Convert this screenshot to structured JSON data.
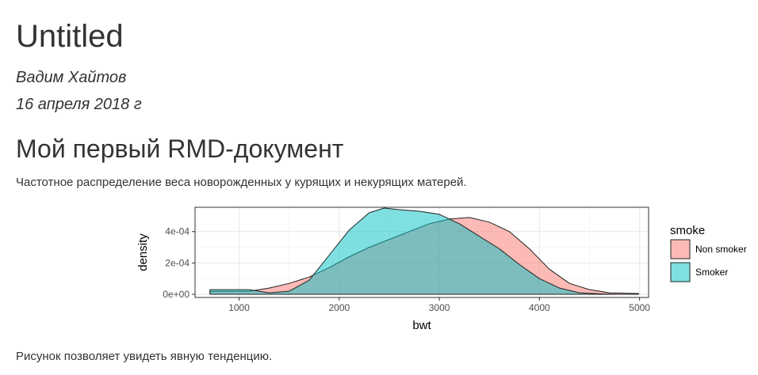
{
  "doc": {
    "title": "Untitled",
    "author": "Вадим Хайтов",
    "date": "16 апреля 2018 г"
  },
  "section": {
    "title": "Мой первый RMD-документ",
    "intro": "Частотное распределение веса новорожденных у курящих и некурящих матерей.",
    "outro": "Рисунок позволяет увидеть явную тенденцию."
  },
  "chart_data": {
    "type": "area",
    "xlabel": "bwt",
    "ylabel": "density",
    "xlim": [
      560,
      5090
    ],
    "ylim": [
      -2e-05,
      0.000555
    ],
    "x_ticks": [
      1000,
      2000,
      3000,
      4000,
      5000
    ],
    "y_ticks": [
      0,
      0.0002,
      0.0004
    ],
    "y_tick_labels": [
      "0e+00",
      "2e-04",
      "4e-04"
    ],
    "grid": true,
    "legend": {
      "title": "smoke",
      "position": "right"
    },
    "series": [
      {
        "name": "Non smoker",
        "color": "#F8766D",
        "x": [
          709,
          900,
          1100,
          1300,
          1500,
          1700,
          1900,
          2100,
          2300,
          2500,
          2700,
          2900,
          3100,
          3300,
          3500,
          3700,
          3900,
          4100,
          4300,
          4500,
          4700,
          4990
        ],
        "y": [
          2e-05,
          2e-05,
          2e-05,
          4e-05,
          7e-05,
          0.00011,
          0.00017,
          0.00024,
          0.0003,
          0.00035,
          0.0004,
          0.00045,
          0.00048,
          0.00049,
          0.00046,
          0.0004,
          0.00029,
          0.00016,
          7e-05,
          3e-05,
          1e-05,
          5e-06
        ]
      },
      {
        "name": "Smoker",
        "color": "#00BFC4",
        "x": [
          709,
          900,
          1100,
          1300,
          1500,
          1700,
          1900,
          2100,
          2300,
          2450,
          2600,
          2800,
          3000,
          3200,
          3400,
          3600,
          3800,
          4000,
          4200,
          4400,
          4600,
          4800
        ],
        "y": [
          3e-05,
          3e-05,
          3e-05,
          1e-05,
          2e-05,
          9e-05,
          0.00025,
          0.00041,
          0.00052,
          0.00055,
          0.00054,
          0.00053,
          0.00051,
          0.00045,
          0.00037,
          0.00029,
          0.00019,
          0.0001,
          4e-05,
          1e-05,
          3e-06,
          0
        ]
      }
    ]
  }
}
